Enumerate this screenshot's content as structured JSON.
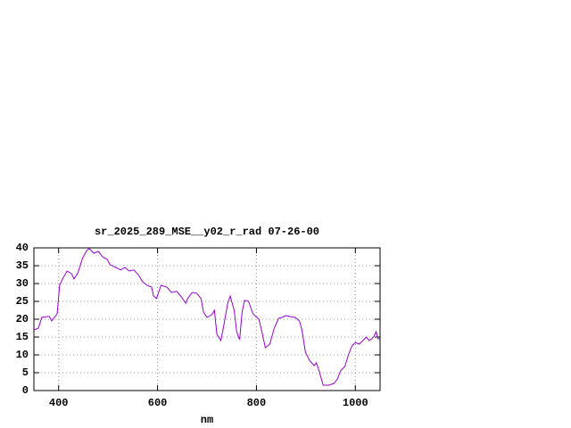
{
  "chart_data": {
    "type": "line",
    "title": "sr_2025_289_MSE__y02_r_rad 07-26-00",
    "x_label": "nm",
    "x": [
      350,
      359,
      366,
      381,
      386,
      393,
      397,
      402,
      408,
      417,
      426,
      431,
      439,
      448,
      457,
      462,
      471,
      480,
      489,
      498,
      504,
      516,
      525,
      534,
      543,
      552,
      561,
      570,
      579,
      588,
      592,
      598,
      607,
      619,
      628,
      639,
      648,
      657,
      661,
      670,
      679,
      688,
      693,
      700,
      710,
      715,
      720,
      728,
      733,
      742,
      747,
      755,
      760,
      766,
      771,
      776,
      784,
      793,
      805,
      811,
      818,
      827,
      836,
      845,
      852,
      859,
      878,
      887,
      892,
      899,
      908,
      917,
      921,
      926,
      935,
      946,
      957,
      964,
      970,
      979,
      986,
      993,
      1000,
      1008,
      1015,
      1022,
      1028,
      1033,
      1038,
      1042,
      1046,
      1050
    ],
    "values": [
      17,
      17.5,
      20.5,
      20.8,
      19.5,
      20.8,
      21.5,
      29.5,
      31.3,
      33.5,
      32.8,
      31.3,
      33,
      37,
      39.3,
      39.8,
      38.5,
      39,
      37.5,
      36.8,
      35.3,
      34.5,
      33.8,
      34.5,
      33.5,
      33.8,
      32.5,
      30.5,
      29.5,
      29,
      26.5,
      25.8,
      29.5,
      29,
      27.5,
      27.8,
      26.3,
      24.5,
      25.8,
      27.5,
      27.3,
      25.8,
      22,
      20.5,
      21.3,
      22.5,
      15.8,
      14,
      17.5,
      24.5,
      26.5,
      22.5,
      16.5,
      14.3,
      22,
      25.3,
      25,
      21.5,
      20,
      16.5,
      12,
      13,
      17.5,
      20.3,
      20.5,
      21,
      20.5,
      19.5,
      17,
      10.8,
      8.3,
      7,
      7.8,
      5.8,
      1.5,
      1.5,
      2,
      3.3,
      5.5,
      6.8,
      10,
      12.5,
      13.5,
      13,
      14,
      15,
      14,
      14.5,
      15.3,
      16.5,
      14.5,
      14.5
    ],
    "color": "#9400d3",
    "xlim": [
      350,
      1050
    ],
    "xticks": [
      400,
      600,
      800,
      1000
    ],
    "ylim": [
      0,
      40
    ],
    "yticks": [
      0,
      5,
      10,
      15,
      20,
      25,
      30,
      35,
      40
    ],
    "grid": true
  }
}
